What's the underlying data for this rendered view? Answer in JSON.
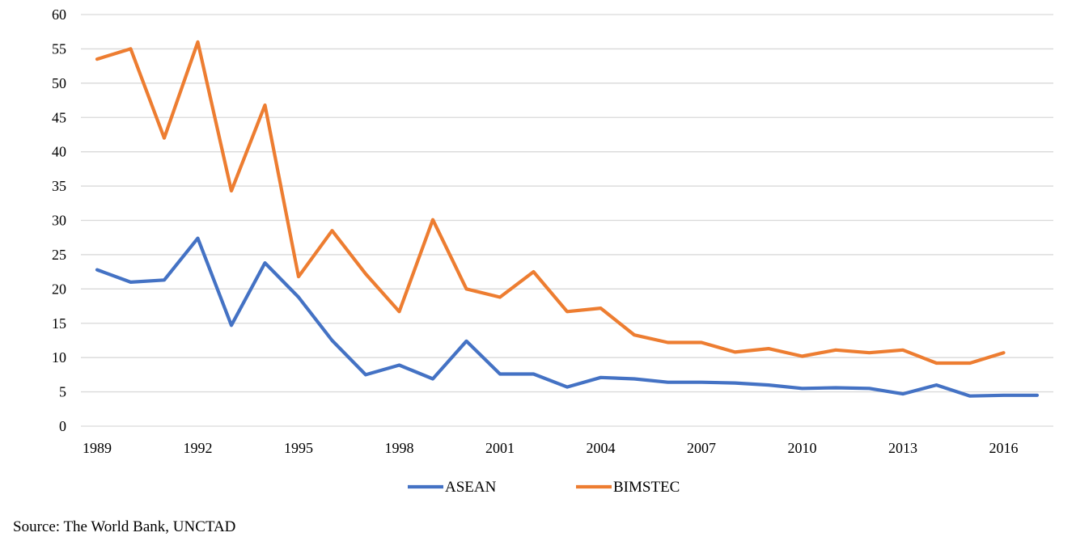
{
  "chart_data": {
    "type": "line",
    "x": [
      1989,
      1990,
      1991,
      1992,
      1993,
      1994,
      1995,
      1996,
      1997,
      1998,
      1999,
      2000,
      2001,
      2002,
      2003,
      2004,
      2005,
      2006,
      2007,
      2008,
      2009,
      2010,
      2011,
      2012,
      2013,
      2014,
      2015,
      2016,
      2017
    ],
    "x_tick_labels": [
      "1989",
      "1992",
      "1995",
      "1998",
      "2001",
      "2004",
      "2007",
      "2010",
      "2013",
      "2016"
    ],
    "y_ticks": [
      0,
      5,
      10,
      15,
      20,
      25,
      30,
      35,
      40,
      45,
      50,
      55,
      60
    ],
    "ylim": [
      0,
      60
    ],
    "grid": true,
    "legend_position": "bottom",
    "series": [
      {
        "name": "ASEAN",
        "color": "#4472C4",
        "values": [
          22.8,
          21.0,
          21.3,
          27.4,
          14.7,
          23.8,
          18.8,
          12.5,
          7.5,
          8.9,
          6.9,
          12.4,
          7.6,
          7.6,
          5.7,
          7.1,
          6.9,
          6.4,
          6.4,
          6.3,
          6.0,
          5.5,
          5.6,
          5.5,
          4.7,
          6.0,
          4.4,
          4.5,
          4.5
        ]
      },
      {
        "name": "BIMSTEC",
        "color": "#ED7D31",
        "values": [
          53.5,
          55.0,
          42.0,
          56.0,
          34.3,
          46.8,
          21.8,
          28.5,
          22.2,
          16.7,
          30.1,
          20.0,
          18.8,
          22.5,
          16.7,
          17.2,
          13.3,
          12.2,
          12.2,
          10.8,
          11.3,
          10.2,
          11.1,
          10.7,
          11.1,
          9.2,
          9.2,
          10.7,
          null
        ]
      }
    ],
    "source_text": "Source: The World Bank, UNCTAD"
  }
}
